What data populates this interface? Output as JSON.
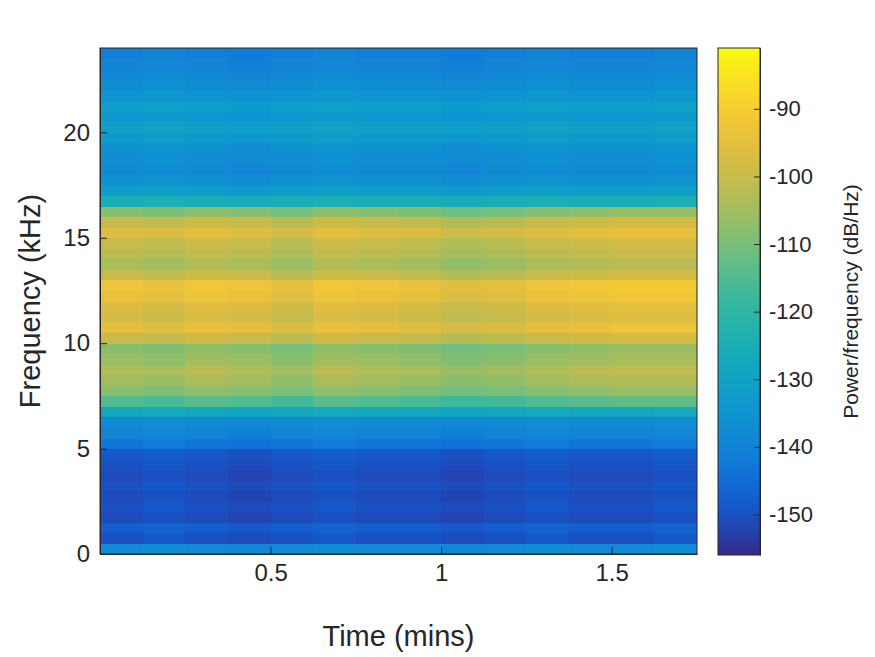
{
  "chart_data": {
    "type": "heatmap",
    "xlabel": "Time (mins)",
    "ylabel": "Frequency (kHz)",
    "xlim": [
      0,
      1.75
    ],
    "xticks": [
      0.5,
      1,
      1.5
    ],
    "ylim": [
      0,
      24
    ],
    "yticks": [
      0,
      5,
      10,
      15,
      20
    ],
    "x": [
      0.0625,
      0.1875,
      0.3125,
      0.4375,
      0.5625,
      0.6875,
      0.8125,
      0.9375,
      1.0625,
      1.1875,
      1.3125,
      1.4375,
      1.5625,
      1.6875
    ],
    "y": [
      0.25,
      0.75,
      1.25,
      1.75,
      2.25,
      2.75,
      3.25,
      3.75,
      4.25,
      4.75,
      5.25,
      5.75,
      6.25,
      6.75,
      7.25,
      7.75,
      8.25,
      8.75,
      9.25,
      9.75,
      10.25,
      10.75,
      11.25,
      11.75,
      12.25,
      12.75,
      13.25,
      13.75,
      14.25,
      14.75,
      15.25,
      15.75,
      16.25,
      16.75,
      17.25,
      17.75,
      18.25,
      18.75,
      19.25,
      19.75,
      20.25,
      20.75,
      21.25,
      21.75,
      22.25,
      22.75,
      23.25,
      23.75
    ],
    "z": [
      [
        -138,
        -137,
        -138,
        -139,
        -138,
        -137,
        -138,
        -138,
        -139,
        -138,
        -137,
        -138,
        -138,
        -137
      ],
      [
        -150,
        -149,
        -150,
        -151,
        -150,
        -149,
        -150,
        -150,
        -151,
        -150,
        -149,
        -150,
        -150,
        -149
      ],
      [
        -148,
        -147,
        -148,
        -149,
        -148,
        -147,
        -148,
        -148,
        -149,
        -148,
        -147,
        -148,
        -148,
        -147
      ],
      [
        -151,
        -150,
        -151,
        -152,
        -151,
        -150,
        -151,
        -151,
        -152,
        -151,
        -150,
        -151,
        -151,
        -150
      ],
      [
        -150,
        -149,
        -150,
        -151,
        -150,
        -149,
        -150,
        -150,
        -151,
        -150,
        -149,
        -150,
        -150,
        -149
      ],
      [
        -151,
        -150,
        -151,
        -152,
        -151,
        -150,
        -151,
        -151,
        -152,
        -151,
        -150,
        -151,
        -151,
        -150
      ],
      [
        -150,
        -149,
        -150,
        -151,
        -150,
        -149,
        -150,
        -150,
        -151,
        -150,
        -149,
        -150,
        -150,
        -149
      ],
      [
        -151,
        -150,
        -151,
        -152,
        -151,
        -150,
        -151,
        -151,
        -152,
        -151,
        -150,
        -151,
        -151,
        -150
      ],
      [
        -150,
        -149,
        -150,
        -151,
        -150,
        -149,
        -150,
        -150,
        -151,
        -150,
        -149,
        -150,
        -150,
        -149
      ],
      [
        -149,
        -148,
        -149,
        -150,
        -149,
        -148,
        -149,
        -149,
        -150,
        -149,
        -148,
        -149,
        -149,
        -148
      ],
      [
        -143,
        -142,
        -143,
        -144,
        -143,
        -142,
        -143,
        -143,
        -144,
        -143,
        -142,
        -143,
        -143,
        -142
      ],
      [
        -140,
        -139,
        -140,
        -141,
        -140,
        -139,
        -140,
        -140,
        -141,
        -140,
        -139,
        -140,
        -140,
        -139
      ],
      [
        -138,
        -137,
        -138,
        -139,
        -138,
        -137,
        -138,
        -138,
        -139,
        -138,
        -137,
        -138,
        -138,
        -137
      ],
      [
        -128,
        -127,
        -128,
        -129,
        -128,
        -127,
        -128,
        -128,
        -129,
        -128,
        -127,
        -128,
        -128,
        -127
      ],
      [
        -115,
        -116,
        -114,
        -115,
        -117,
        -114,
        -115,
        -116,
        -118,
        -117,
        -115,
        -114,
        -113,
        -113
      ],
      [
        -108,
        -109,
        -107,
        -108,
        -110,
        -107,
        -108,
        -109,
        -111,
        -110,
        -108,
        -107,
        -106,
        -106
      ],
      [
        -105,
        -106,
        -104,
        -105,
        -107,
        -104,
        -105,
        -106,
        -108,
        -107,
        -105,
        -104,
        -103,
        -103
      ],
      [
        -103,
        -104,
        -102,
        -103,
        -105,
        -102,
        -103,
        -104,
        -106,
        -105,
        -103,
        -102,
        -101,
        -101
      ],
      [
        -106,
        -107,
        -105,
        -106,
        -108,
        -105,
        -106,
        -107,
        -109,
        -108,
        -106,
        -105,
        -104,
        -104
      ],
      [
        -108,
        -109,
        -107,
        -108,
        -110,
        -107,
        -108,
        -109,
        -111,
        -110,
        -108,
        -107,
        -106,
        -106
      ],
      [
        -100,
        -101,
        -99,
        -100,
        -102,
        -99,
        -100,
        -101,
        -103,
        -102,
        -100,
        -99,
        -98,
        -98
      ],
      [
        -95,
        -96,
        -94,
        -95,
        -97,
        -94,
        -95,
        -96,
        -98,
        -97,
        -95,
        -94,
        -93,
        -93
      ],
      [
        -98,
        -99,
        -97,
        -98,
        -100,
        -97,
        -98,
        -99,
        -101,
        -100,
        -98,
        -97,
        -96,
        -96
      ],
      [
        -97,
        -98,
        -96,
        -97,
        -99,
        -96,
        -97,
        -98,
        -100,
        -99,
        -97,
        -96,
        -95,
        -95
      ],
      [
        -94,
        -95,
        -93,
        -94,
        -96,
        -93,
        -94,
        -95,
        -97,
        -96,
        -94,
        -93,
        -92,
        -92
      ],
      [
        -93,
        -94,
        -92,
        -93,
        -95,
        -92,
        -93,
        -94,
        -96,
        -95,
        -93,
        -92,
        -91,
        -91
      ],
      [
        -100,
        -101,
        -99,
        -100,
        -102,
        -99,
        -100,
        -101,
        -103,
        -102,
        -100,
        -99,
        -98,
        -98
      ],
      [
        -104,
        -105,
        -103,
        -104,
        -106,
        -103,
        -104,
        -105,
        -107,
        -106,
        -104,
        -103,
        -102,
        -102
      ],
      [
        -102,
        -103,
        -101,
        -102,
        -104,
        -101,
        -102,
        -103,
        -105,
        -104,
        -102,
        -101,
        -100,
        -100
      ],
      [
        -100,
        -101,
        -99,
        -100,
        -102,
        -99,
        -100,
        -101,
        -103,
        -102,
        -100,
        -99,
        -98,
        -98
      ],
      [
        -96,
        -97,
        -95,
        -96,
        -98,
        -95,
        -96,
        -97,
        -99,
        -98,
        -96,
        -95,
        -94,
        -94
      ],
      [
        -100,
        -101,
        -99,
        -100,
        -102,
        -99,
        -100,
        -101,
        -103,
        -102,
        -100,
        -99,
        -98,
        -98
      ],
      [
        -108,
        -109,
        -107,
        -108,
        -110,
        -107,
        -108,
        -109,
        -111,
        -110,
        -108,
        -107,
        -106,
        -106
      ],
      [
        -125,
        -124,
        -125,
        -126,
        -125,
        -124,
        -125,
        -125,
        -126,
        -125,
        -124,
        -125,
        -125,
        -124
      ],
      [
        -132,
        -131,
        -132,
        -133,
        -132,
        -131,
        -132,
        -132,
        -133,
        -132,
        -131,
        -132,
        -132,
        -131
      ],
      [
        -136,
        -135,
        -136,
        -137,
        -136,
        -135,
        -136,
        -136,
        -137,
        -136,
        -135,
        -136,
        -136,
        -135
      ],
      [
        -138,
        -137,
        -138,
        -139,
        -138,
        -137,
        -138,
        -138,
        -139,
        -138,
        -137,
        -138,
        -138,
        -137
      ],
      [
        -137,
        -136,
        -137,
        -138,
        -137,
        -136,
        -137,
        -137,
        -138,
        -137,
        -136,
        -137,
        -137,
        -136
      ],
      [
        -136,
        -135,
        -136,
        -137,
        -136,
        -135,
        -136,
        -136,
        -137,
        -136,
        -135,
        -136,
        -136,
        -135
      ],
      [
        -133,
        -132,
        -133,
        -134,
        -133,
        -132,
        -133,
        -133,
        -134,
        -133,
        -132,
        -133,
        -133,
        -132
      ],
      [
        -131,
        -130,
        -131,
        -132,
        -131,
        -130,
        -131,
        -131,
        -132,
        -131,
        -130,
        -131,
        -131,
        -130
      ],
      [
        -134,
        -133,
        -134,
        -135,
        -134,
        -133,
        -134,
        -134,
        -135,
        -134,
        -133,
        -134,
        -134,
        -133
      ],
      [
        -132,
        -131,
        -132,
        -133,
        -132,
        -131,
        -132,
        -132,
        -133,
        -132,
        -131,
        -132,
        -132,
        -131
      ],
      [
        -135,
        -134,
        -135,
        -136,
        -135,
        -134,
        -135,
        -135,
        -136,
        -135,
        -134,
        -135,
        -135,
        -134
      ],
      [
        -137,
        -136,
        -137,
        -138,
        -137,
        -136,
        -137,
        -137,
        -138,
        -137,
        -136,
        -137,
        -137,
        -136
      ],
      [
        -139,
        -138,
        -139,
        -140,
        -139,
        -138,
        -139,
        -139,
        -140,
        -139,
        -138,
        -139,
        -139,
        -138
      ],
      [
        -140,
        -139,
        -140,
        -141,
        -140,
        -139,
        -140,
        -140,
        -141,
        -140,
        -139,
        -140,
        -140,
        -139
      ],
      [
        -141,
        -140,
        -141,
        -142,
        -141,
        -140,
        -141,
        -141,
        -142,
        -141,
        -140,
        -141,
        -141,
        -140
      ]
    ],
    "colorbar": {
      "label": "Power/frequency (dB/Hz)",
      "range": [
        -156,
        -81
      ],
      "ticks": [
        -150,
        -140,
        -130,
        -120,
        -110,
        -100,
        -90
      ]
    }
  }
}
